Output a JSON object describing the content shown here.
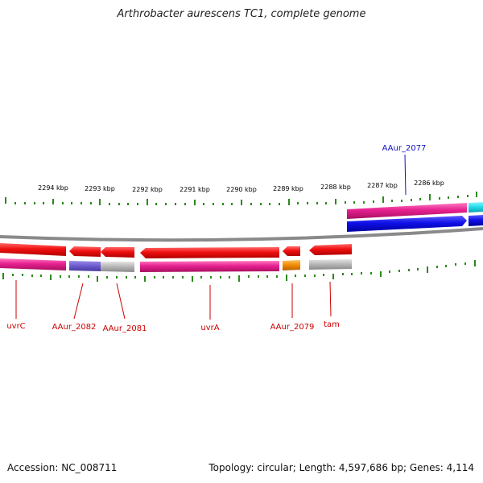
{
  "title": "Arthrobacter aurescens TC1, complete genome",
  "footer": {
    "accession": "Accession: NC_008711",
    "summary": "Topology: circular; Length: 4,597,686 bp; Genes: 4,114"
  },
  "scale": {
    "tick_color": "#2a8a1a",
    "labels": [
      "2294 kbp",
      "2293 kbp",
      "2292 kbp",
      "2291 kbp",
      "2290 kbp",
      "2289 kbp",
      "2288 kbp",
      "2287 kbp",
      "2286 kbp"
    ]
  },
  "colors": {
    "forward_gene": "#1010e0",
    "reverse_gene": "#e01010",
    "backbone": "#8a8a8a",
    "cds_pink": "#e0208a",
    "cds_purple": "#6a5acd",
    "cds_gray": "#b0b0b0",
    "cds_orange": "#f08a00",
    "cds_cyan": "#20d8e8"
  },
  "genes": [
    {
      "name": "uvrC",
      "strand": "reverse"
    },
    {
      "name": "AAur_2082",
      "strand": "reverse"
    },
    {
      "name": "AAur_2081",
      "strand": "reverse"
    },
    {
      "name": "uvrA",
      "strand": "reverse"
    },
    {
      "name": "AAur_2079",
      "strand": "reverse"
    },
    {
      "name": "tam",
      "strand": "reverse"
    },
    {
      "name": "AAur_2077",
      "strand": "forward"
    }
  ]
}
